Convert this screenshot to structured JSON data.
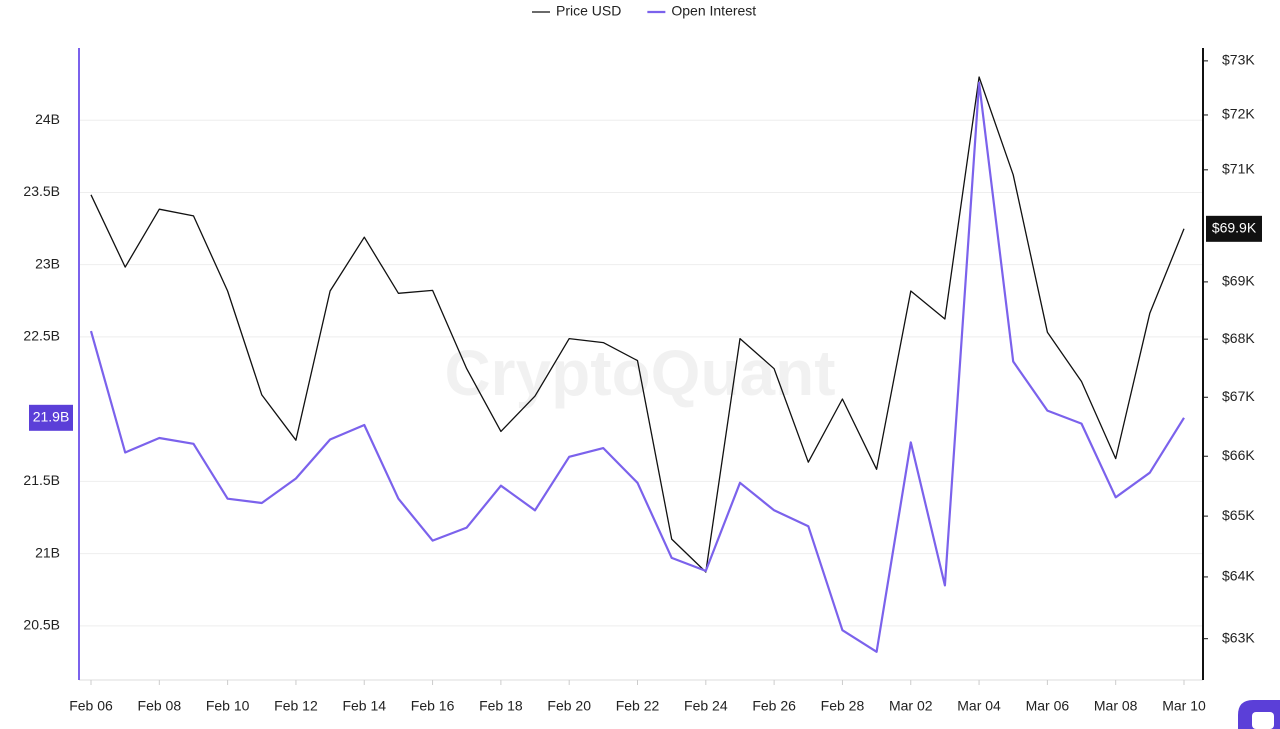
{
  "chart_data": {
    "type": "line",
    "watermark": "CryptoQuant",
    "categories": [
      "Feb 06",
      null,
      "Feb 08",
      null,
      "Feb 10",
      null,
      "Feb 12",
      null,
      "Feb 14",
      null,
      "Feb 16",
      null,
      "Feb 18",
      null,
      "Feb 20",
      null,
      "Feb 22",
      null,
      "Feb 24",
      null,
      "Feb 26",
      null,
      "Feb 28",
      null,
      "Mar 02",
      null,
      "Mar 04",
      null,
      "Mar 06",
      null,
      "Mar 08",
      null,
      "Mar 10"
    ],
    "series": [
      {
        "name": "Price USD",
        "color": "#111111",
        "axis": "y2",
        "values": [
          70550,
          69260,
          70290,
          70170,
          68840,
          67040,
          66270,
          68840,
          69790,
          68800,
          68850,
          67490,
          66420,
          67020,
          68010,
          67940,
          67630,
          64620,
          64080,
          68010,
          67490,
          65900,
          66970,
          65780,
          68840,
          68350,
          72700,
          70910,
          68120,
          67270,
          65960,
          68450,
          69940
        ]
      },
      {
        "name": "Open Interest",
        "color": "#7b62ec",
        "values": [
          22.54,
          21.7,
          21.8,
          21.76,
          21.38,
          21.35,
          21.52,
          21.79,
          21.89,
          21.38,
          21.09,
          21.18,
          21.47,
          21.3,
          21.67,
          21.73,
          21.49,
          20.97,
          20.88,
          21.49,
          21.3,
          21.19,
          20.47,
          20.32,
          21.77,
          20.78,
          24.26,
          22.33,
          21.99,
          21.9,
          21.39,
          21.56,
          21.94
        ]
      }
    ],
    "ylim": [
      20.125,
      24.5
    ],
    "yticks": [
      {
        "value": 20.5,
        "label": "20.5B"
      },
      {
        "value": 21,
        "label": "21B"
      },
      {
        "value": 21.5,
        "label": "21.5B"
      },
      {
        "value": 22.5,
        "label": "22.5B"
      },
      {
        "value": 23,
        "label": "23B"
      },
      {
        "value": 23.5,
        "label": "23.5B"
      },
      {
        "value": 24,
        "label": "24B"
      }
    ],
    "y2lim": [
      62340,
      73240
    ],
    "y2_log": true,
    "y2ticks": [
      {
        "value": 63000,
        "label": "$63K"
      },
      {
        "value": 64000,
        "label": "$64K"
      },
      {
        "value": 65000,
        "label": "$65K"
      },
      {
        "value": 66000,
        "label": "$66K"
      },
      {
        "value": 67000,
        "label": "$67K"
      },
      {
        "value": 68000,
        "label": "$68K"
      },
      {
        "value": 69000,
        "label": "$69K"
      },
      {
        "value": 71000,
        "label": "$71K"
      },
      {
        "value": 72000,
        "label": "$72K"
      },
      {
        "value": 73000,
        "label": "$73K"
      }
    ],
    "y_current": {
      "value": 21.94,
      "label": "21.9B"
    },
    "y2_current": {
      "value": 69940,
      "label": "$69.9K"
    },
    "grid": true,
    "legend": "top"
  }
}
